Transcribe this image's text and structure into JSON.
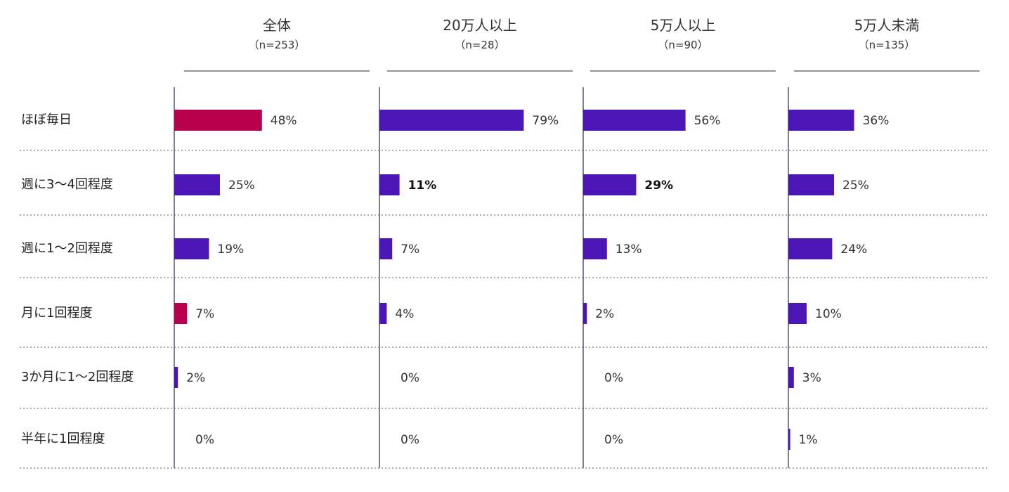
{
  "chart_data": {
    "type": "bar",
    "orientation": "horizontal",
    "categories": [
      "ほぼ毎日",
      "週に3〜4回程度",
      "週に1〜2回程度",
      "月に1回程度",
      "3か月に1〜2回程度",
      "半年に1回程度"
    ],
    "value_unit": "%",
    "colors": {
      "bar": "#4B16B5",
      "highlight": "#B8004F",
      "axis": "#555577",
      "grid": "#777777"
    },
    "panels": [
      {
        "title": "全体",
        "subtitle": "（n=253）",
        "values": [
          48,
          25,
          19,
          7,
          2,
          0
        ],
        "value_labels": [
          "48%",
          "25%",
          "19%",
          "7%",
          "2%",
          "0%"
        ],
        "highlight": [
          true,
          false,
          false,
          true,
          false,
          false
        ],
        "bold": [
          false,
          false,
          false,
          false,
          false,
          false
        ]
      },
      {
        "title": "20万人以上",
        "subtitle": "（n=28）",
        "values": [
          79,
          11,
          7,
          4,
          0,
          0
        ],
        "value_labels": [
          "79%",
          "11%",
          "7%",
          "4%",
          "0%",
          "0%"
        ],
        "highlight": [
          false,
          false,
          false,
          false,
          false,
          false
        ],
        "bold": [
          false,
          true,
          false,
          false,
          false,
          false
        ]
      },
      {
        "title": "5万人以上",
        "subtitle": "（n=90）",
        "values": [
          56,
          29,
          13,
          2,
          0,
          0
        ],
        "value_labels": [
          "56%",
          "29%",
          "13%",
          "2%",
          "0%",
          "0%"
        ],
        "highlight": [
          false,
          false,
          false,
          false,
          false,
          false
        ],
        "bold": [
          false,
          true,
          false,
          false,
          false,
          false
        ]
      },
      {
        "title": "5万人未満",
        "subtitle": "（n=135）",
        "values": [
          36,
          25,
          24,
          10,
          3,
          1
        ],
        "value_labels": [
          "36%",
          "25%",
          "24%",
          "10%",
          "3%",
          "1%"
        ],
        "highlight": [
          false,
          false,
          false,
          false,
          false,
          false
        ],
        "bold": [
          false,
          false,
          false,
          false,
          false,
          false
        ]
      }
    ]
  }
}
